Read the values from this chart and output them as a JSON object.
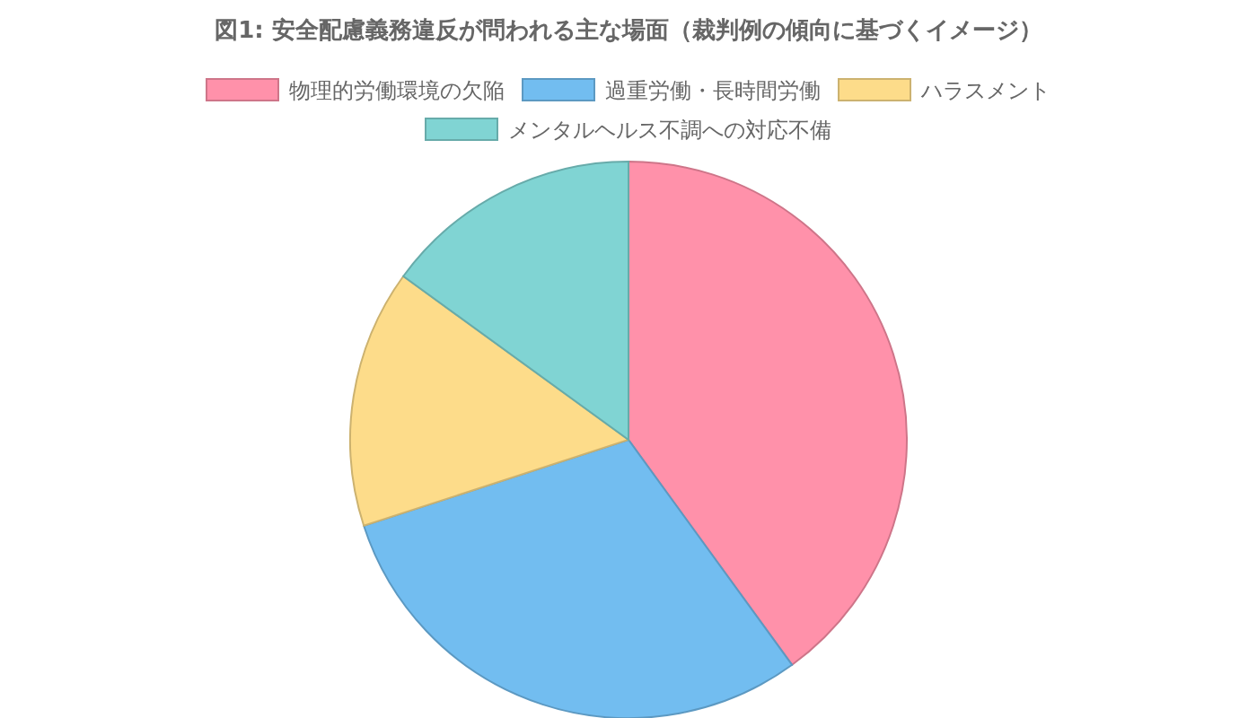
{
  "chart_data": {
    "type": "pie",
    "title": "図1: 安全配慮義務違反が問われる主な場面（裁判例の傾向に基づくイメージ）",
    "categories": [
      "物理的労働環境の欠陥",
      "過重労働・長時間労働",
      "ハラスメント",
      "メンタルヘルス不調への対応不備"
    ],
    "values": [
      40,
      30,
      15,
      15
    ],
    "colors": [
      "#ff91aa",
      "#72bdf0",
      "#fddc8a",
      "#80d4d3"
    ],
    "legend": "top"
  }
}
